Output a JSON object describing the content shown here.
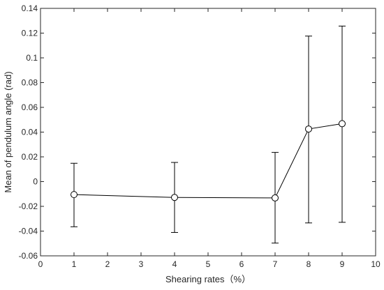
{
  "chart_data": {
    "type": "line",
    "xlabel": "Shearing rates（%）",
    "ylabel": "Mean of pendulum angle (rad)",
    "xlim": [
      0,
      10
    ],
    "ylim": [
      -0.06,
      0.14
    ],
    "xticks": [
      0,
      1,
      2,
      3,
      4,
      5,
      6,
      7,
      8,
      9,
      10
    ],
    "yticks": [
      -0.06,
      -0.04,
      -0.02,
      0,
      0.02,
      0.04,
      0.06,
      0.08,
      0.1,
      0.12,
      0.14
    ],
    "xtick_labels": [
      "0",
      "1",
      "2",
      "3",
      "4",
      "5",
      "6",
      "7",
      "8",
      "9",
      "10"
    ],
    "ytick_labels": [
      "-0.06",
      "-0.04",
      "-0.02",
      "0",
      "0.02",
      "0.04",
      "0.06",
      "0.08",
      "0.1",
      "0.12",
      "0.14"
    ],
    "grid": false,
    "marker": "open-circle",
    "colors": {
      "line": "#000000",
      "axes": "#262626"
    },
    "series": [
      {
        "x": [
          1,
          4,
          7,
          8,
          9
        ],
        "y": [
          -0.0105,
          -0.0128,
          -0.0132,
          0.0425,
          0.0468
        ],
        "error_lower": [
          -0.0365,
          -0.0411,
          -0.0497,
          -0.0334,
          -0.0329
        ],
        "error_upper": [
          0.0148,
          0.0155,
          0.0236,
          0.1176,
          0.1257
        ]
      }
    ]
  }
}
